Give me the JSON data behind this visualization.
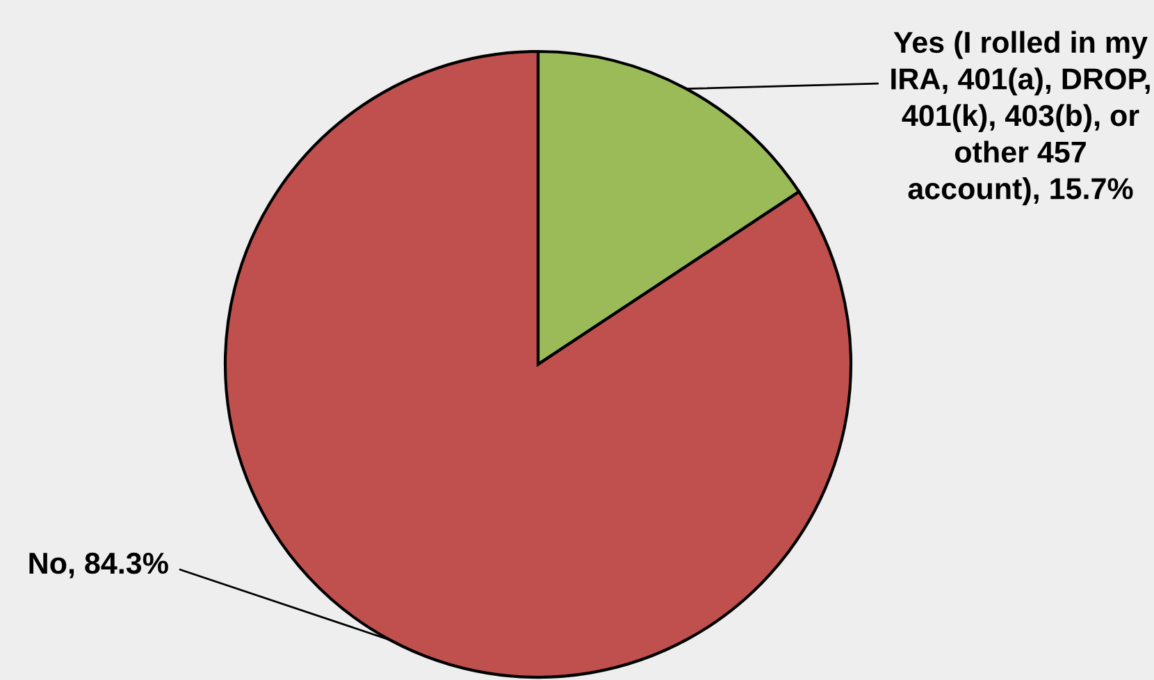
{
  "chart_data": {
    "type": "pie",
    "categories": [
      "Yes (I rolled in my IRA, 401(a), DROP, 401(k), 403(b), or other 457 account)",
      "No"
    ],
    "values": [
      15.7,
      84.3
    ],
    "colors": [
      "#9bbb59",
      "#c0504d"
    ],
    "value_labels": [
      "15.7%",
      "84.3%"
    ]
  }
}
